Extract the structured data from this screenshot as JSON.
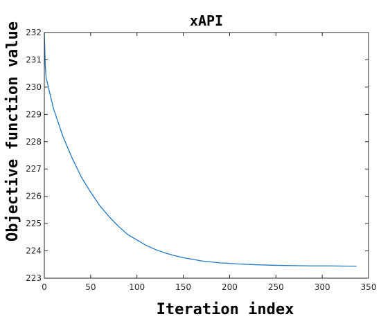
{
  "chart_data": {
    "type": "line",
    "title": "xAPI",
    "xlabel": "Iteration index",
    "ylabel": "Objective function value",
    "xlim": [
      0,
      350
    ],
    "ylim": [
      223,
      232
    ],
    "xticks": [
      "0",
      "50",
      "100",
      "150",
      "200",
      "250",
      "300",
      "350"
    ],
    "yticks": [
      "223",
      "224",
      "225",
      "226",
      "227",
      "228",
      "229",
      "230",
      "231",
      "232"
    ],
    "grid": false,
    "series": [
      {
        "color": "#1f77c4",
        "x": [
          0,
          1,
          2,
          3,
          5,
          10,
          15,
          20,
          30,
          40,
          50,
          60,
          70,
          80,
          90,
          100,
          110,
          120,
          130,
          140,
          150,
          170,
          190,
          210,
          230,
          250,
          270,
          290,
          310,
          330,
          337
        ],
        "y": [
          232.0,
          230.8,
          230.3,
          230.2,
          229.9,
          229.2,
          228.7,
          228.2,
          227.4,
          226.7,
          226.15,
          225.65,
          225.25,
          224.9,
          224.6,
          224.4,
          224.2,
          224.05,
          223.93,
          223.83,
          223.75,
          223.63,
          223.56,
          223.52,
          223.49,
          223.47,
          223.46,
          223.45,
          223.45,
          223.44,
          223.44
        ]
      }
    ]
  }
}
